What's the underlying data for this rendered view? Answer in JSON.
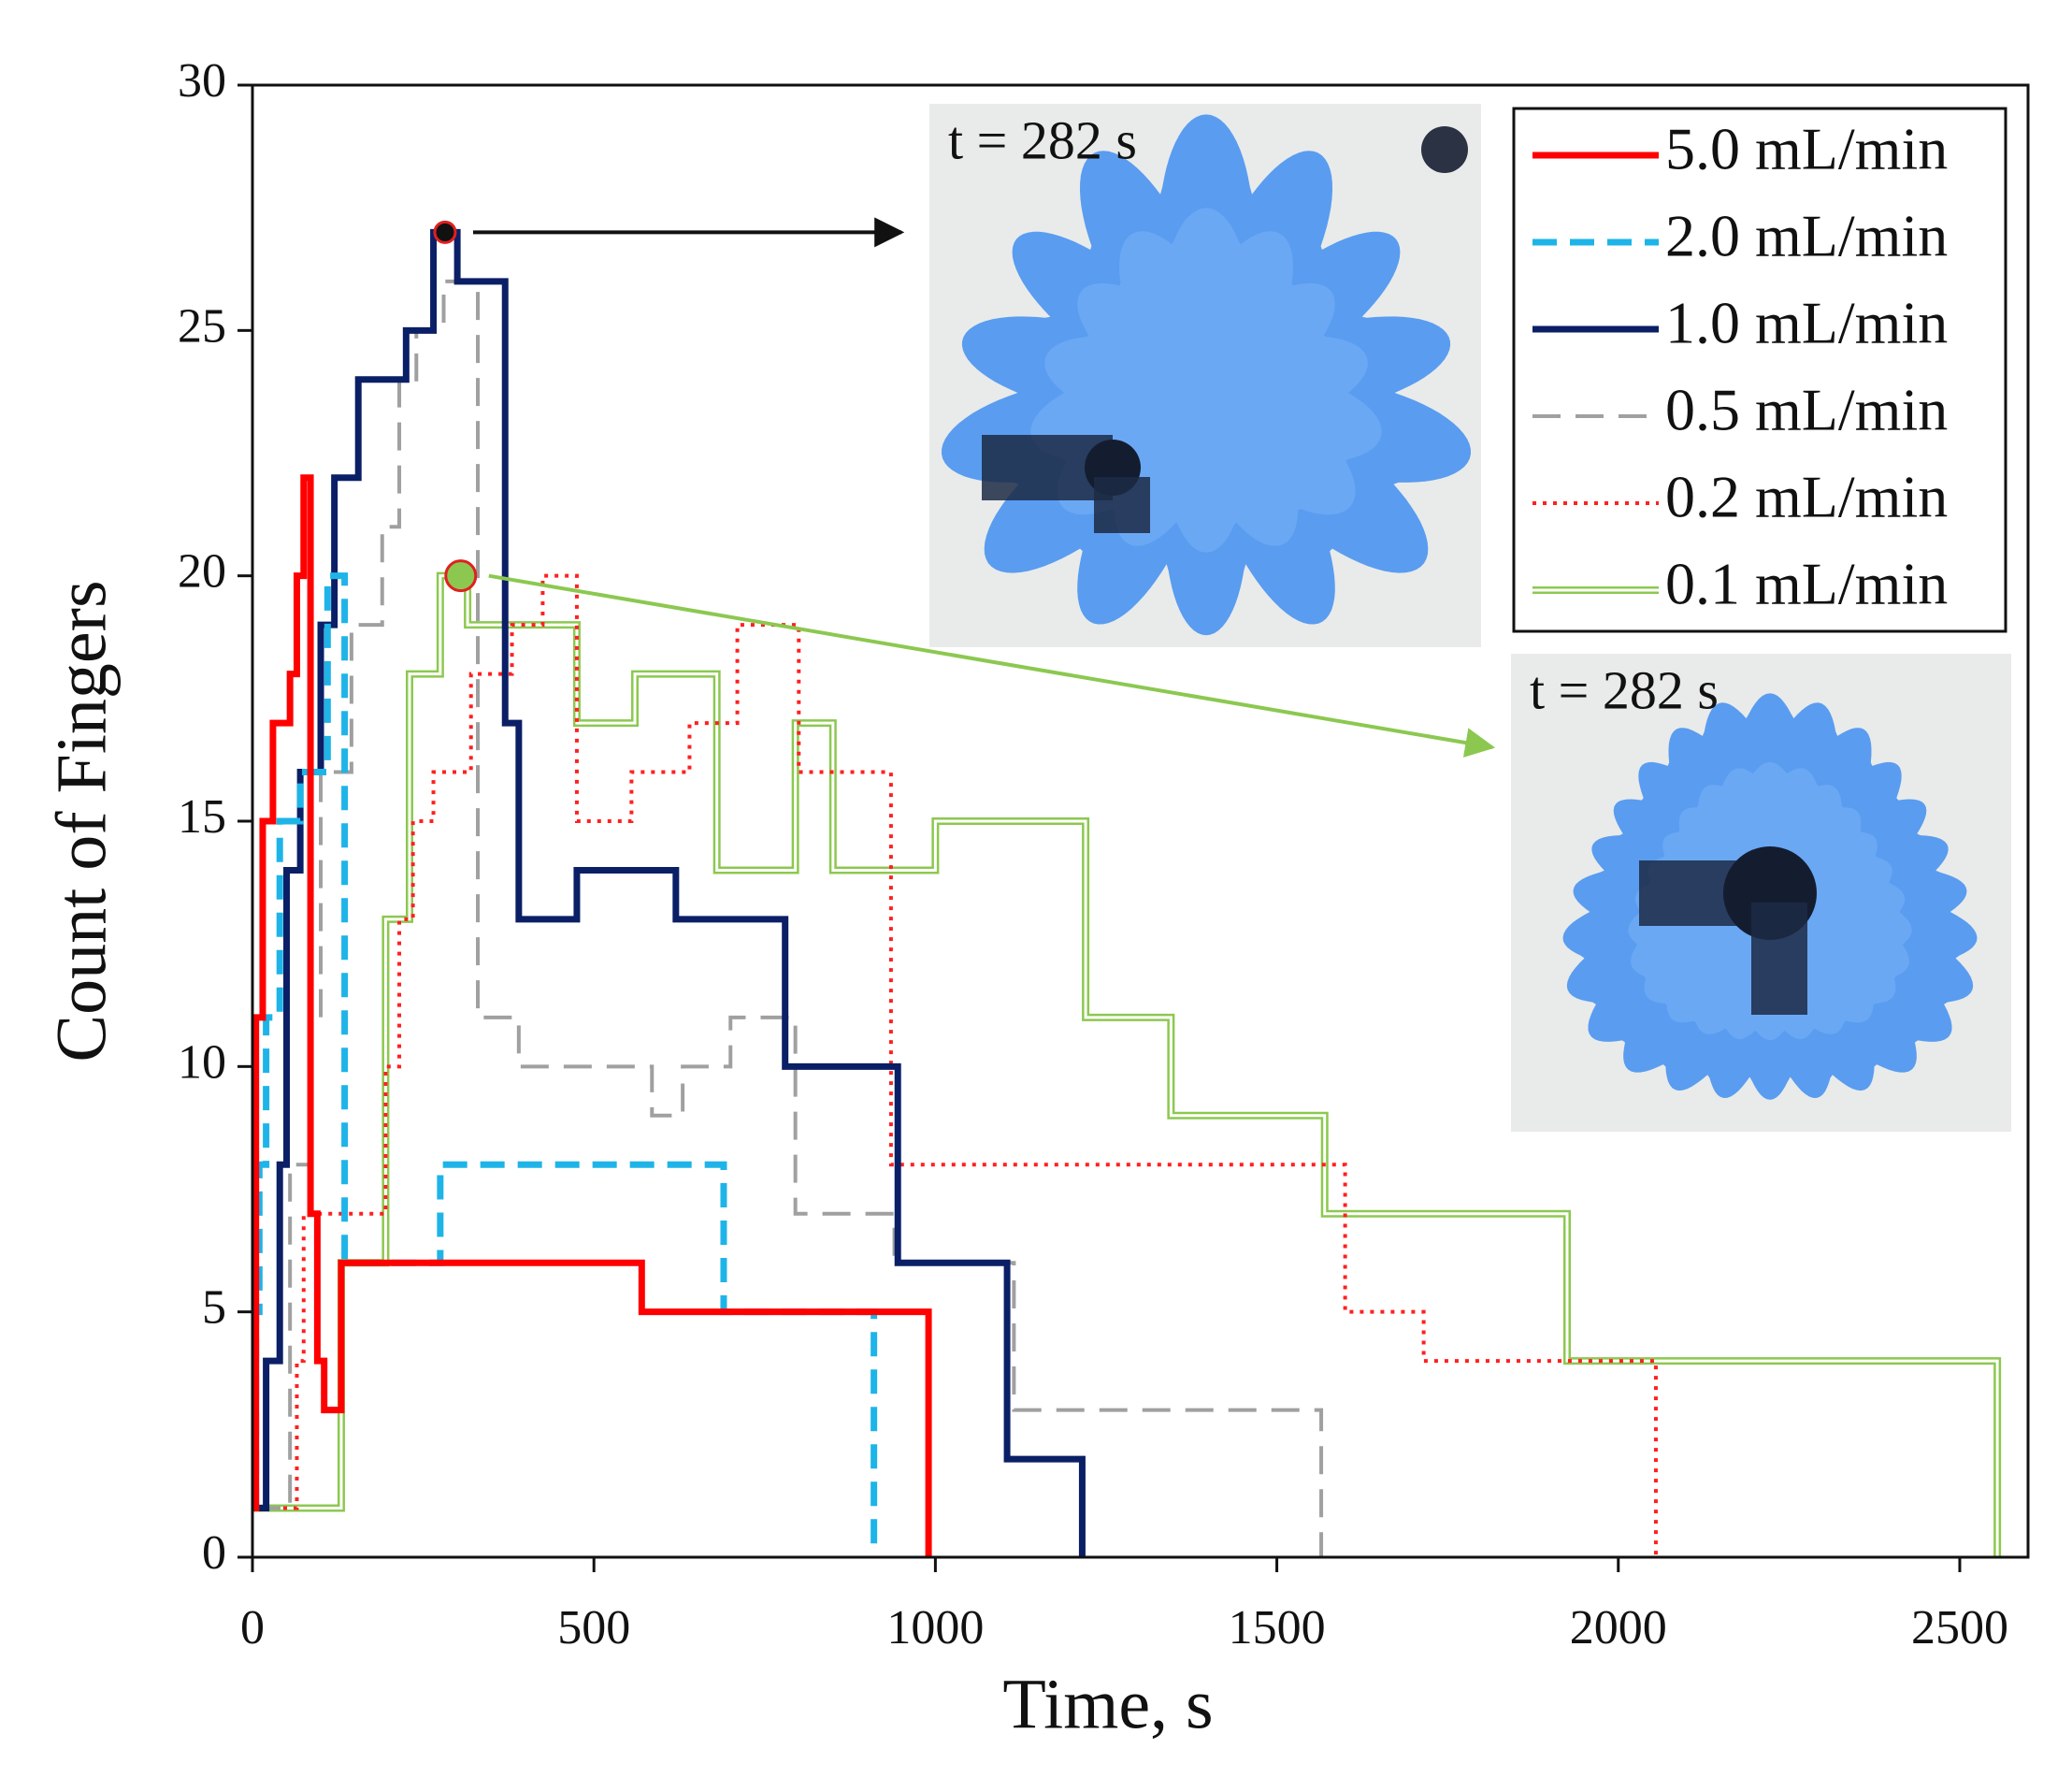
{
  "chart_data": {
    "type": "step",
    "xlabel": "Time, s",
    "ylabel": "Count of Fingers",
    "xlim": [
      0,
      2600
    ],
    "ylim": [
      0,
      30
    ],
    "xticks": [
      0,
      500,
      1000,
      1500,
      2000,
      2500
    ],
    "yticks": [
      0,
      5,
      10,
      15,
      20,
      25,
      30
    ],
    "legend": "upper right",
    "series": [
      {
        "name": "5.0 mL/min",
        "color": "#ff0000",
        "linestyle": "solid",
        "x": [
          0,
          5,
          15,
          30,
          55,
          65,
          75,
          85,
          95,
          105,
          130,
          570,
          990
        ],
        "values": [
          1,
          11,
          15,
          17,
          18,
          20,
          22,
          7,
          4,
          3,
          6,
          5,
          0
        ]
      },
      {
        "name": "2.0 mL/min",
        "color": "#1eb4e8",
        "linestyle": "dashed",
        "x": [
          0,
          5,
          10,
          20,
          40,
          70,
          110,
          135,
          275,
          690,
          910
        ],
        "values": [
          1,
          5,
          8,
          11,
          15,
          16,
          20,
          6,
          8,
          5,
          0
        ]
      },
      {
        "name": "1.0 mL/min",
        "color": "#0a1f66",
        "linestyle": "solid",
        "x": [
          0,
          20,
          40,
          50,
          70,
          100,
          120,
          155,
          225,
          265,
          300,
          370,
          390,
          475,
          620,
          780,
          945,
          1105,
          1215
        ],
        "values": [
          1,
          4,
          8,
          14,
          16,
          19,
          22,
          24,
          25,
          27,
          26,
          17,
          13,
          14,
          13,
          10,
          6,
          2,
          0
        ]
      },
      {
        "name": "0.5 mL/min",
        "color": "#a0a0a0",
        "linestyle": "longdash",
        "x": [
          0,
          55,
          85,
          100,
          145,
          190,
          215,
          240,
          280,
          330,
          390,
          585,
          630,
          700,
          795,
          940,
          1115,
          1565
        ],
        "values": [
          1,
          8,
          11,
          16,
          19,
          21,
          24,
          25,
          26,
          11,
          10,
          9,
          10,
          11,
          7,
          6,
          3,
          0
        ]
      },
      {
        "name": "0.2 mL/min",
        "color": "#ff2020",
        "linestyle": "dotted",
        "x": [
          0,
          65,
          75,
          195,
          215,
          235,
          265,
          320,
          380,
          425,
          475,
          555,
          640,
          710,
          800,
          935,
          1600,
          1715,
          2055
        ],
        "values": [
          1,
          4,
          7,
          10,
          13,
          15,
          16,
          18,
          19,
          20,
          15,
          16,
          17,
          19,
          16,
          8,
          5,
          4,
          0
        ]
      },
      {
        "name": "0.1 mL/min",
        "color": "#8cc850",
        "linestyle": "double",
        "x": [
          0,
          130,
          195,
          230,
          275,
          315,
          475,
          560,
          680,
          795,
          850,
          1000,
          1220,
          1345,
          1570,
          1925,
          2555
        ],
        "values": [
          1,
          6,
          13,
          18,
          20,
          19,
          17,
          18,
          14,
          17,
          14,
          15,
          11,
          9,
          7,
          4,
          0
        ]
      }
    ],
    "annotations": [
      {
        "label": "t = 282 s",
        "x": 282,
        "y": 27,
        "color": "#0a1f66"
      },
      {
        "label": "t = 282 s",
        "x": 305,
        "y": 20,
        "color": "#8cc850"
      }
    ]
  }
}
